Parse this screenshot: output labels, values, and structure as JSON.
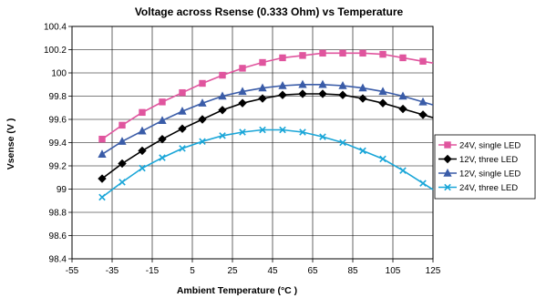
{
  "chart_data": {
    "type": "line",
    "title": "Voltage across Rsense (0.333 Ohm) vs Temperature",
    "xlabel": "Ambient Temperature (°C )",
    "ylabel": "Vsense (V )",
    "xlim": [
      -55,
      125
    ],
    "ylim": [
      98.4,
      100.4
    ],
    "xticks": [
      -55,
      -35,
      -15,
      5,
      25,
      45,
      65,
      85,
      105,
      125
    ],
    "xtick_labels": [
      "-55",
      "-35",
      "-15",
      "5",
      "25",
      "45",
      "65",
      "85",
      "105",
      "125"
    ],
    "yticks": [
      98.4,
      98.6,
      98.8,
      99,
      99.2,
      99.4,
      99.6,
      99.8,
      100,
      100.2,
      100.4
    ],
    "ytick_labels": [
      "98.4",
      "98.6",
      "98.8",
      "99",
      "99.2",
      "99.4",
      "99.6",
      "99.8",
      "100",
      "100.2",
      "100.4"
    ],
    "grid": true,
    "legend_position": "right",
    "series": [
      {
        "name": "24V, single LED",
        "color": "#e0559e",
        "marker": "square",
        "x": [
          -40,
          -30,
          -20,
          -10,
          0,
          10,
          20,
          30,
          40,
          50,
          60,
          70,
          80,
          90,
          100,
          110,
          120
        ],
        "y": [
          99.43,
          99.55,
          99.66,
          99.75,
          99.83,
          99.91,
          99.98,
          100.04,
          100.09,
          100.13,
          100.15,
          100.17,
          100.17,
          100.17,
          100.16,
          100.13,
          100.1
        ]
      },
      {
        "name": "12V, three LED",
        "color": "#000000",
        "marker": "diamond",
        "x": [
          -40,
          -30,
          -20,
          -10,
          0,
          10,
          20,
          30,
          40,
          50,
          60,
          70,
          80,
          90,
          100,
          110,
          120
        ],
        "y": [
          99.09,
          99.22,
          99.33,
          99.43,
          99.52,
          99.6,
          99.68,
          99.74,
          99.78,
          99.81,
          99.82,
          99.82,
          99.81,
          99.78,
          99.74,
          99.69,
          99.64
        ]
      },
      {
        "name": "12V, single LED",
        "color": "#3a5ca8",
        "marker": "triangle",
        "x": [
          -40,
          -30,
          -20,
          -10,
          0,
          10,
          20,
          30,
          40,
          50,
          60,
          70,
          80,
          90,
          100,
          110,
          120
        ],
        "y": [
          99.3,
          99.41,
          99.5,
          99.59,
          99.67,
          99.74,
          99.8,
          99.84,
          99.87,
          99.89,
          99.9,
          99.9,
          99.89,
          99.87,
          99.84,
          99.8,
          99.75
        ]
      },
      {
        "name": "24V, three LED",
        "color": "#1aa6d8",
        "marker": "x",
        "x": [
          -40,
          -30,
          -20,
          -10,
          0,
          10,
          20,
          30,
          40,
          50,
          60,
          70,
          80,
          90,
          100,
          110,
          120
        ],
        "y": [
          98.93,
          99.06,
          99.18,
          99.27,
          99.35,
          99.41,
          99.46,
          99.49,
          99.51,
          99.51,
          99.49,
          99.45,
          99.4,
          99.33,
          99.26,
          99.16,
          99.05
        ]
      }
    ]
  }
}
